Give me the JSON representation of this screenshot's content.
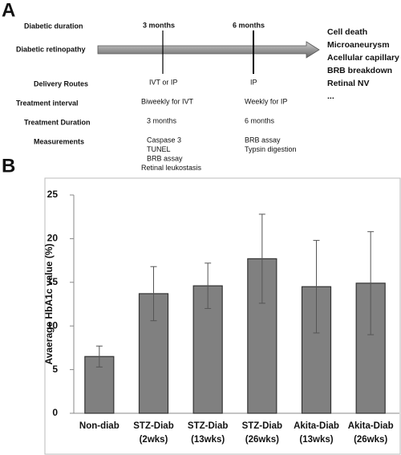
{
  "diagram": {
    "label": "A",
    "duration_label": "Diabetic duration",
    "time_points": [
      "3 months",
      "6 months"
    ],
    "arrow_label": "Diabetic retinopathy",
    "outcomes": [
      "Cell death",
      "Microaneurysm",
      "Acellular capillary",
      "BRB breakdown",
      "Retinal NV",
      "..."
    ],
    "rows": [
      {
        "label": "Delivery Routes",
        "col1": [
          "IVT or IP"
        ],
        "col2": [
          "IP"
        ]
      },
      {
        "label": "Treatment  interval",
        "col1": [
          "Biweekly for IVT"
        ],
        "col2": [
          "Weekly for IP"
        ]
      },
      {
        "label": "Treatment Duration",
        "col1": [
          "3 months"
        ],
        "col2": [
          "6 months"
        ]
      },
      {
        "label": "Measurements",
        "col1": [
          "Caspase 3",
          "TUNEL",
          "BRB assay",
          "Retinal leukostasis"
        ],
        "col2": [
          "BRB assay",
          "Typsin digestion"
        ]
      }
    ]
  },
  "chart_data": {
    "type": "bar",
    "panel_label": "B",
    "y_label": "Avaerage HbA1c value (%)",
    "categories": [
      "Non-diab",
      "STZ-Diab (2wks)",
      "STZ-Diab (13wks)",
      "STZ-Diab (26wks)",
      "Akita-Diab (13wks)",
      "Akita-Diab (26wks)"
    ],
    "values": [
      6.5,
      13.7,
      14.6,
      17.7,
      14.5,
      14.9
    ],
    "errors": [
      1.2,
      3.1,
      2.6,
      5.1,
      5.3,
      5.9
    ],
    "color": "#808080",
    "ylim": [
      0,
      25
    ],
    "yticks": [
      0,
      5,
      10,
      15,
      20,
      25
    ]
  }
}
